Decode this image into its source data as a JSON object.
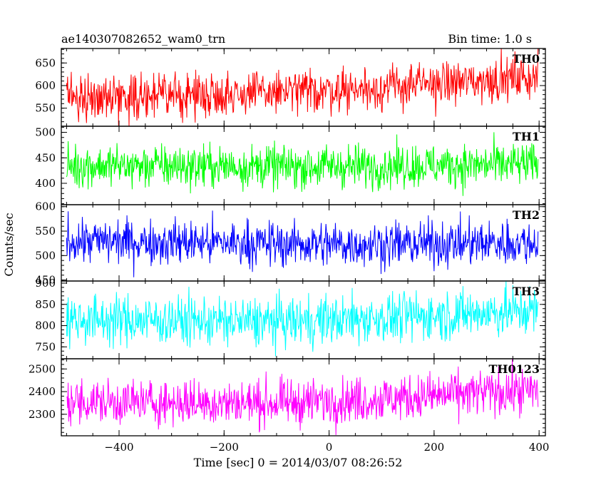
{
  "chart_data": {
    "type": "line",
    "title": "ae140307082652_wam0_trn",
    "subtitle": "Bin time: 1.0 s",
    "xlabel": "Time [sec] 0 = 2014/03/07 08:26:52",
    "ylabel": "Counts/sec",
    "xlim": [
      -510,
      412
    ],
    "xticks": [
      -400,
      -200,
      0,
      200,
      400
    ],
    "xtick_labels": [
      "−400",
      "−200",
      "0",
      "200",
      "400"
    ],
    "x_start": -500,
    "x_end": 398,
    "bin_seconds": 1.0,
    "panels": [
      {
        "name": "TH0",
        "color": "#ff0000",
        "ylim": [
          510,
          682
        ],
        "yticks": [
          550,
          600,
          650
        ],
        "trend": [
          [
            -500,
            575
          ],
          [
            -300,
            578
          ],
          [
            -100,
            585
          ],
          [
            100,
            595
          ],
          [
            300,
            612
          ],
          [
            398,
            620
          ]
        ],
        "noise": 24
      },
      {
        "name": "TH1",
        "color": "#00ff00",
        "ylim": [
          358,
          512
        ],
        "yticks": [
          400,
          450,
          500
        ],
        "trend": [
          [
            -500,
            435
          ],
          [
            -300,
            434
          ],
          [
            -100,
            433
          ],
          [
            100,
            434
          ],
          [
            300,
            436
          ],
          [
            398,
            437
          ]
        ],
        "noise": 21
      },
      {
        "name": "TH2",
        "color": "#0000ff",
        "ylim": [
          448,
          604
        ],
        "yticks": [
          450,
          500,
          550,
          600
        ],
        "trend": [
          [
            -500,
            530
          ],
          [
            -300,
            528
          ],
          [
            -100,
            524
          ],
          [
            100,
            523
          ],
          [
            300,
            525
          ],
          [
            398,
            526
          ]
        ],
        "noise": 23
      },
      {
        "name": "TH3",
        "color": "#00ffff",
        "ylim": [
          722,
          905
        ],
        "yticks": [
          750,
          800,
          850,
          900
        ],
        "trend": [
          [
            -500,
            815
          ],
          [
            -300,
            812
          ],
          [
            -100,
            808
          ],
          [
            100,
            818
          ],
          [
            300,
            830
          ],
          [
            398,
            836
          ]
        ],
        "noise": 29
      },
      {
        "name": "TH0123",
        "color": "#ff00ff",
        "ylim": [
          2205,
          2545
        ],
        "yticks": [
          2300,
          2400,
          2500
        ],
        "trend": [
          [
            -500,
            2355
          ],
          [
            -300,
            2352
          ],
          [
            -100,
            2350
          ],
          [
            100,
            2368
          ],
          [
            300,
            2395
          ],
          [
            398,
            2405
          ]
        ],
        "noise": 50
      }
    ]
  }
}
